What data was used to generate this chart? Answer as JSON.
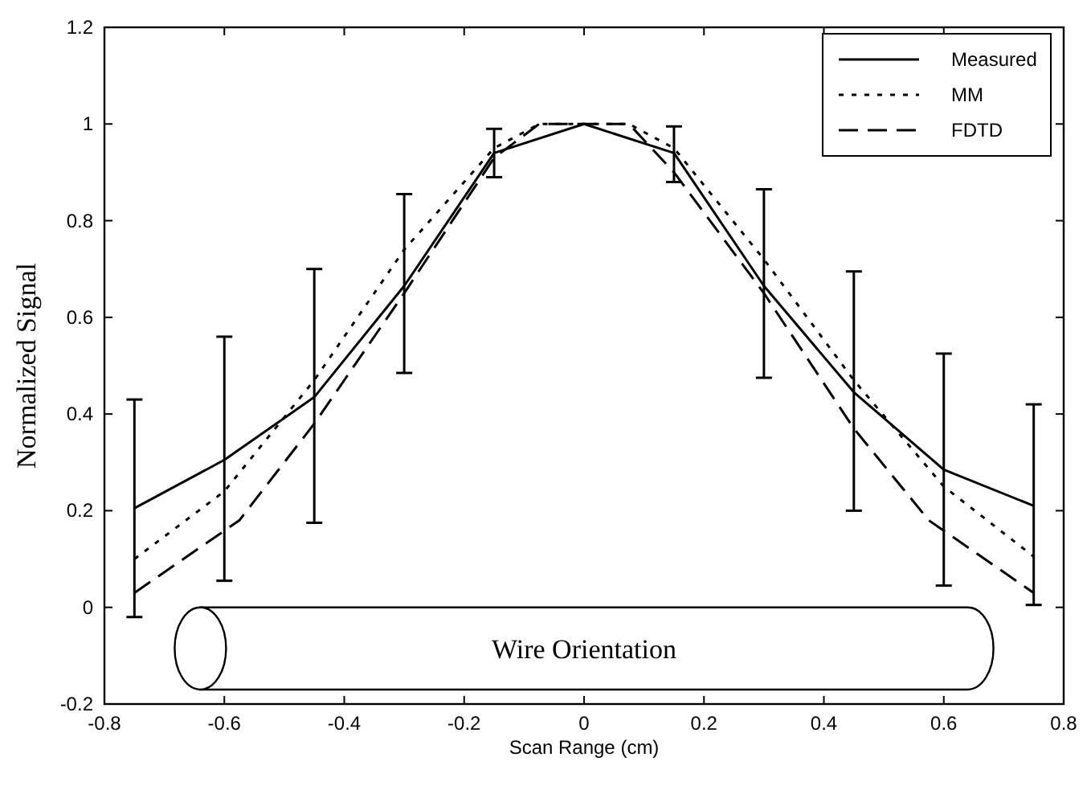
{
  "chart_data": {
    "type": "line",
    "xlabel": "Scan Range (cm)",
    "ylabel": "Normalized Signal",
    "xlim": [
      -0.8,
      0.8
    ],
    "xticks": [
      -0.8,
      -0.6,
      -0.4,
      -0.2,
      0,
      0.2,
      0.4,
      0.6,
      0.8
    ],
    "ylim": [
      -0.2,
      1.2
    ],
    "yticks": [
      -0.2,
      0,
      0.2,
      0.4,
      0.6,
      0.8,
      1,
      1.2
    ],
    "grid": false,
    "legend": "top right",
    "marker": "none",
    "annotations": [
      "Wire Orientation"
    ],
    "series": [
      {
        "name": "Measured",
        "color": "#000000",
        "line_style": "solid",
        "x": [
          -0.75,
          -0.6,
          -0.45,
          -0.3,
          -0.15,
          0,
          0.15,
          0.3,
          0.45,
          0.6,
          0.75
        ],
        "values": [
          0.205,
          0.305,
          0.435,
          0.665,
          0.94,
          1.0,
          0.94,
          0.665,
          0.445,
          0.285,
          0.21
        ],
        "errors": [
          [
            -0.02,
            0.43
          ],
          [
            0.055,
            0.56
          ],
          [
            0.175,
            0.7
          ],
          [
            0.485,
            0.855
          ],
          [
            0.89,
            0.99
          ],
          null,
          [
            0.88,
            0.995
          ],
          [
            0.475,
            0.865
          ],
          [
            0.2,
            0.695
          ],
          [
            0.045,
            0.525
          ],
          [
            0.005,
            0.42
          ]
        ]
      },
      {
        "name": "MM",
        "color": "#000000",
        "line_style": "dotted",
        "x": [
          -0.75,
          -0.6,
          -0.45,
          -0.3,
          -0.15,
          -0.075,
          0.075,
          0.15,
          0.3,
          0.45,
          0.6,
          0.75
        ],
        "values": [
          0.1,
          0.24,
          0.47,
          0.74,
          0.95,
          1.0,
          1.0,
          0.95,
          0.72,
          0.47,
          0.25,
          0.105
        ]
      },
      {
        "name": "FDTD",
        "color": "#000000",
        "line_style": "dashed",
        "x": [
          -0.75,
          -0.575,
          -0.45,
          -0.3,
          -0.15,
          -0.075,
          0.075,
          0.15,
          0.3,
          0.45,
          0.575,
          0.75
        ],
        "values": [
          0.03,
          0.18,
          0.38,
          0.65,
          0.93,
          1.0,
          1.0,
          0.9,
          0.65,
          0.37,
          0.18,
          0.03
        ]
      }
    ]
  }
}
